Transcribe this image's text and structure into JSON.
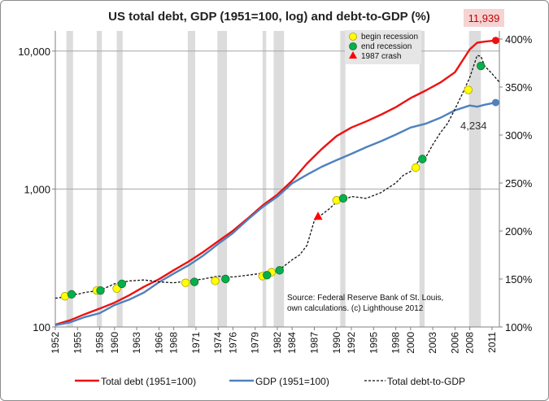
{
  "chart_data": {
    "type": "line",
    "title": "US total debt, GDP (1951=100, log) and debt-to-GDP (%)",
    "x_ticks": [
      "1952",
      "1955",
      "1958",
      "1960",
      "1963",
      "1966",
      "1968",
      "1971",
      "1974",
      "1976",
      "1979",
      "1982",
      "1984",
      "1987",
      "1990",
      "1992",
      "1995",
      "1998",
      "2000",
      "2003",
      "2006",
      "2008",
      "2011"
    ],
    "x_range": [
      1952,
      2012
    ],
    "left_axis": {
      "scale": "log",
      "range": [
        100,
        14000
      ],
      "ticks": [
        "100",
        "1,000",
        "10,000"
      ]
    },
    "right_axis": {
      "range": [
        100,
        400
      ],
      "ticks": [
        "100%",
        "150%",
        "200%",
        "250%",
        "300%",
        "350%",
        "400%"
      ]
    },
    "recessions": [
      [
        1953.5,
        1954.4
      ],
      [
        1957.6,
        1958.3
      ],
      [
        1960.3,
        1961.1
      ],
      [
        1969.9,
        1970.9
      ],
      [
        1973.9,
        1975.2
      ],
      [
        1980.0,
        1980.5
      ],
      [
        1981.5,
        1982.9
      ],
      [
        1990.5,
        1991.2
      ],
      [
        2001.2,
        2001.9
      ],
      [
        2007.9,
        2009.5
      ]
    ],
    "series": [
      {
        "name": "Total debt (1951=100)",
        "color": "#ee1111",
        "axis": "left",
        "x": [
          1952,
          1954,
          1956,
          1958,
          1960,
          1962,
          1964,
          1966,
          1968,
          1970,
          1972,
          1974,
          1976,
          1978,
          1980,
          1982,
          1984,
          1986,
          1988,
          1990,
          1992,
          1994,
          1996,
          1998,
          2000,
          2002,
          2004,
          2006,
          2008,
          2009,
          2010,
          2011.5
        ],
        "y": [
          104,
          112,
          124,
          136,
          150,
          170,
          196,
          222,
          258,
          298,
          350,
          418,
          498,
          612,
          760,
          910,
          1150,
          1530,
          1950,
          2420,
          2790,
          3090,
          3460,
          3920,
          4560,
          5160,
          5900,
          7020,
          10300,
          11500,
          11700,
          11939
        ]
      },
      {
        "name": "GDP (1951=100)",
        "color": "#4f81bd",
        "axis": "left",
        "x": [
          1952,
          1954,
          1956,
          1958,
          1960,
          1962,
          1964,
          1966,
          1968,
          1970,
          1972,
          1974,
          1976,
          1978,
          1980,
          1982,
          1984,
          1986,
          1988,
          1990,
          1992,
          1994,
          1996,
          1998,
          2000,
          2002,
          2004,
          2006,
          2008,
          2009,
          2010,
          2011.5
        ],
        "y": [
          103,
          108,
          118,
          126,
          144,
          158,
          178,
          211,
          244,
          280,
          330,
          400,
          480,
          600,
          740,
          880,
          1100,
          1270,
          1450,
          1620,
          1800,
          2010,
          2220,
          2480,
          2790,
          2970,
          3280,
          3720,
          4030,
          3950,
          4080,
          4234
        ]
      },
      {
        "name": "Total debt-to-GDP",
        "color": "#111111",
        "axis": "right",
        "dashed": true,
        "x": [
          1952,
          1953,
          1954,
          1955,
          1956,
          1957,
          1958,
          1960,
          1962,
          1964,
          1966,
          1968,
          1970,
          1972,
          1974,
          1976,
          1978,
          1980,
          1981,
          1982,
          1984,
          1985,
          1986,
          1987,
          1988,
          1989,
          1990,
          1991,
          1992,
          1994,
          1996,
          1998,
          1999,
          2000,
          2001,
          2002,
          2003,
          2004,
          2005,
          2006,
          2007,
          2008,
          2009,
          2009.5,
          2010,
          2011,
          2012
        ],
        "y": [
          130,
          131,
          135,
          134,
          136,
          137,
          138,
          145,
          148,
          149,
          147,
          146,
          148,
          150,
          153,
          152,
          154,
          156,
          158,
          158,
          170,
          175,
          185,
          211,
          217,
          223,
          230,
          232,
          236,
          234,
          240,
          250,
          258,
          262,
          272,
          276,
          290,
          302,
          312,
          327,
          343,
          360,
          383,
          382,
          372,
          364,
          355
        ]
      }
    ],
    "recession_markers": {
      "begin": {
        "label": "begin recession",
        "color": "#ffff00",
        "points": [
          [
            1953.3,
            132
          ],
          [
            1957.6,
            138
          ],
          [
            1960.3,
            140
          ],
          [
            1969.6,
            146
          ],
          [
            1973.6,
            148
          ],
          [
            1980.0,
            153
          ],
          [
            1981.2,
            157
          ],
          [
            1990.0,
            232
          ],
          [
            2000.7,
            266
          ],
          [
            2007.8,
            347
          ]
        ]
      },
      "end": {
        "label": "end recession",
        "color": "#00b050",
        "points": [
          [
            1954.2,
            134
          ],
          [
            1958.1,
            138
          ],
          [
            1961.0,
            145
          ],
          [
            1970.8,
            147
          ],
          [
            1975.0,
            150
          ],
          [
            1980.6,
            154
          ],
          [
            1982.3,
            159
          ],
          [
            1990.9,
            234
          ],
          [
            2001.6,
            275
          ],
          [
            2009.5,
            372
          ]
        ]
      }
    },
    "event": {
      "label": "1987 crash",
      "x": 1987.5,
      "y": 215,
      "color": "#ff0000"
    },
    "end_labels": {
      "debt": "11,939",
      "gdp": "4,234"
    },
    "annotation": [
      "Source: Federal Reserve Bank of St. Louis,",
      "own calculations. (c) Lighthouse 2012"
    ],
    "grid": {
      "horizontal": true,
      "vertical": false
    },
    "legend": {
      "position": "bottom"
    }
  }
}
